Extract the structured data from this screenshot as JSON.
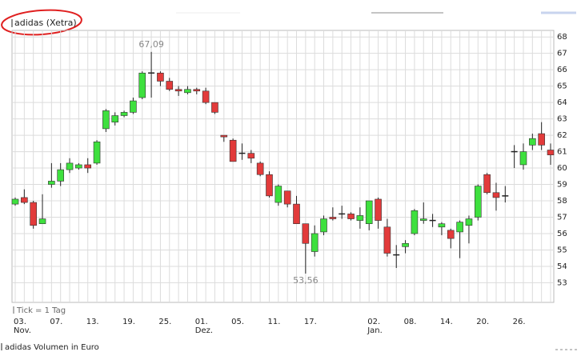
{
  "chart_data": {
    "type": "candlestick",
    "title": "adidas (Xetra)",
    "tick_note": "Tick = 1 Tag",
    "volume_title": "adidas Volumen in Euro",
    "categories": [
      "03.",
      null,
      null,
      null,
      "07.",
      null,
      null,
      null,
      "13.",
      null,
      null,
      null,
      "19.",
      null,
      null,
      null,
      "25.",
      null,
      null,
      null,
      "01.",
      null,
      null,
      null,
      "05.",
      null,
      null,
      null,
      "11.",
      null,
      null,
      null,
      "17.",
      null,
      null,
      null,
      null,
      null,
      null,
      "02.",
      null,
      null,
      null,
      "08.",
      null,
      null,
      null,
      "14.",
      null,
      null,
      null,
      "20.",
      null,
      null,
      null,
      "26.",
      null,
      null,
      null,
      null
    ],
    "category_sublabels": [
      "Nov.",
      null,
      null,
      null,
      null,
      null,
      null,
      null,
      null,
      null,
      null,
      null,
      null,
      null,
      null,
      null,
      null,
      null,
      null,
      null,
      "Dez.",
      null,
      null,
      null,
      null,
      null,
      null,
      null,
      null,
      null,
      null,
      null,
      null,
      null,
      null,
      null,
      null,
      null,
      null,
      "Jan.",
      null,
      null,
      null,
      null,
      null,
      null,
      null,
      null,
      null,
      null,
      null,
      null,
      null,
      null,
      null,
      null,
      null,
      null,
      null,
      null
    ],
    "open": [
      57.8,
      58.2,
      57.9,
      56.6,
      59.0,
      59.2,
      59.9,
      60.0,
      60.2,
      60.3,
      62.4,
      62.8,
      63.2,
      63.4,
      64.3,
      65.8,
      65.8,
      65.3,
      64.8,
      64.6,
      64.8,
      64.7,
      64.0,
      62.0,
      61.7,
      60.9,
      60.9,
      60.3,
      59.6,
      57.9,
      58.6,
      57.8,
      56.6,
      54.9,
      56.1,
      57.0,
      57.2,
      57.2,
      56.8,
      56.6,
      58.1,
      56.4,
      54.7,
      55.2,
      56.0,
      56.8,
      56.8,
      56.4,
      56.2,
      56.1,
      56.5,
      57.0,
      59.6,
      58.5,
      58.3,
      61.0,
      60.2,
      61.4,
      62.1,
      61.1
    ],
    "high": [
      58.2,
      58.7,
      58.0,
      58.4,
      60.3,
      60.3,
      60.6,
      60.3,
      60.6,
      61.7,
      63.6,
      63.4,
      63.5,
      64.3,
      65.9,
      67.09,
      65.9,
      65.5,
      65.0,
      65.0,
      64.9,
      64.9,
      64.0,
      62.0,
      61.8,
      61.5,
      61.1,
      60.4,
      59.8,
      59.0,
      58.6,
      58.3,
      56.5,
      56.5,
      57.1,
      57.6,
      57.7,
      57.3,
      57.6,
      58.0,
      58.2,
      56.9,
      55.3,
      55.6,
      57.5,
      57.9,
      57.2,
      56.7,
      56.3,
      56.8,
      57.1,
      59.0,
      59.7,
      59.1,
      58.9,
      61.4,
      61.5,
      62.1,
      62.8,
      61.5
    ],
    "low": [
      57.7,
      57.8,
      56.3,
      56.6,
      58.8,
      58.9,
      59.7,
      59.9,
      59.7,
      60.2,
      62.2,
      62.6,
      63.1,
      63.3,
      64.2,
      64.3,
      65.0,
      64.7,
      64.4,
      64.5,
      64.5,
      63.9,
      63.3,
      61.6,
      60.4,
      60.5,
      60.3,
      59.5,
      58.2,
      57.7,
      57.6,
      56.6,
      53.56,
      54.6,
      55.9,
      56.8,
      56.9,
      56.8,
      56.3,
      56.2,
      56.3,
      54.6,
      53.9,
      54.8,
      55.9,
      56.6,
      56.4,
      55.9,
      55.1,
      54.5,
      55.4,
      56.8,
      58.4,
      57.4,
      57.9,
      60.0,
      59.9,
      61.1,
      61.1,
      60.2
    ],
    "close": [
      58.1,
      57.9,
      56.5,
      56.9,
      59.2,
      59.9,
      60.3,
      60.2,
      60.0,
      61.6,
      63.5,
      63.2,
      63.4,
      64.1,
      65.8,
      65.8,
      65.3,
      64.8,
      64.7,
      64.8,
      64.7,
      64.0,
      63.4,
      61.9,
      60.4,
      60.9,
      60.6,
      59.6,
      58.3,
      58.9,
      57.8,
      56.6,
      55.4,
      56.0,
      56.9,
      56.9,
      57.2,
      56.9,
      57.1,
      58.0,
      56.8,
      54.8,
      54.7,
      55.4,
      57.4,
      56.9,
      56.8,
      56.6,
      55.7,
      56.7,
      56.9,
      58.9,
      58.5,
      58.2,
      58.3,
      61.0,
      61.0,
      61.8,
      61.4,
      60.8
    ],
    "up_color": "#3ee03e",
    "down_color": "#e23b3b",
    "annotations": [
      {
        "value": 67.09,
        "label": "67,09"
      },
      {
        "value": 53.56,
        "label": "53,56"
      }
    ],
    "ylim": [
      51.8,
      68.4
    ],
    "yticks": [
      53,
      54,
      55,
      56,
      57,
      58,
      59,
      60,
      61,
      62,
      63,
      64,
      65,
      66,
      67,
      68
    ],
    "grid": true
  }
}
